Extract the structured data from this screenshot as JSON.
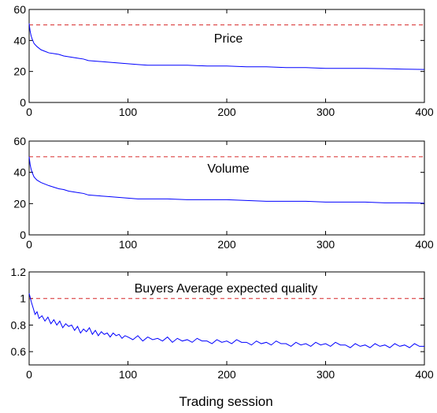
{
  "figure": {
    "xlabel": "Trading session"
  },
  "chart_data": [
    {
      "type": "line",
      "title": "",
      "annotation": "Price",
      "xlabel": "",
      "ylabel": "",
      "xlim": [
        0,
        400
      ],
      "ylim": [
        0,
        60
      ],
      "xticks": [
        0,
        100,
        200,
        300,
        400
      ],
      "yticks": [
        0,
        20,
        40,
        60
      ],
      "grid": false,
      "legend": "none",
      "reference_line": {
        "y": 50,
        "style": "dashed",
        "color": "#d62728"
      },
      "series": [
        {
          "color": "#0000ff",
          "x": [
            0,
            1,
            2,
            3,
            5,
            8,
            12,
            16,
            20,
            25,
            30,
            35,
            40,
            45,
            50,
            55,
            60,
            70,
            80,
            90,
            100,
            110,
            120,
            140,
            160,
            180,
            200,
            220,
            240,
            260,
            280,
            300,
            320,
            340,
            360,
            380,
            400
          ],
          "y": [
            51,
            46,
            43,
            41,
            38,
            36,
            34,
            33,
            32,
            31.5,
            31,
            30,
            29.5,
            29,
            28.5,
            28,
            27,
            26.5,
            26,
            25.5,
            25,
            24.5,
            24,
            24,
            24,
            23.5,
            23.5,
            23,
            23,
            22.5,
            22.5,
            22,
            22,
            22,
            21.8,
            21.5,
            21.3
          ]
        }
      ]
    },
    {
      "type": "line",
      "title": "",
      "annotation": "Volume",
      "xlabel": "",
      "ylabel": "",
      "xlim": [
        0,
        400
      ],
      "ylim": [
        0,
        60
      ],
      "xticks": [
        0,
        100,
        200,
        300,
        400
      ],
      "yticks": [
        0,
        20,
        40,
        60
      ],
      "grid": false,
      "legend": "none",
      "reference_line": {
        "y": 50,
        "style": "dashed",
        "color": "#d62728"
      },
      "series": [
        {
          "color": "#0000ff",
          "x": [
            0,
            1,
            2,
            3,
            5,
            8,
            12,
            16,
            20,
            25,
            30,
            35,
            40,
            45,
            50,
            55,
            60,
            70,
            80,
            90,
            100,
            110,
            120,
            140,
            160,
            180,
            200,
            220,
            240,
            260,
            280,
            300,
            320,
            340,
            360,
            380,
            400
          ],
          "y": [
            50,
            45,
            42,
            40,
            37,
            35,
            33.5,
            32.5,
            31.5,
            30.5,
            29.5,
            29,
            28,
            27.5,
            27,
            26.5,
            25.5,
            25,
            24.5,
            24,
            23.5,
            23,
            23,
            23,
            22.5,
            22.5,
            22.5,
            22,
            21.5,
            21.5,
            21.5,
            21,
            21,
            21,
            20.5,
            20.5,
            20.3
          ]
        }
      ]
    },
    {
      "type": "line",
      "title": "",
      "annotation": "Buyers Average expected quality",
      "xlabel": "Trading session",
      "ylabel": "",
      "xlim": [
        0,
        400
      ],
      "ylim": [
        0.5,
        1.2
      ],
      "xticks": [
        0,
        100,
        200,
        300,
        400
      ],
      "yticks": [
        0.6,
        0.8,
        1,
        1.2
      ],
      "grid": false,
      "legend": "none",
      "reference_line": {
        "y": 1,
        "style": "dashed",
        "color": "#d62728"
      },
      "series": [
        {
          "color": "#0000ff",
          "x": [
            0,
            2,
            4,
            6,
            8,
            10,
            13,
            16,
            19,
            22,
            25,
            28,
            31,
            34,
            37,
            40,
            43,
            46,
            49,
            52,
            55,
            58,
            61,
            64,
            67,
            70,
            73,
            76,
            79,
            82,
            85,
            88,
            91,
            94,
            97,
            100,
            105,
            110,
            115,
            120,
            125,
            130,
            135,
            140,
            145,
            150,
            155,
            160,
            165,
            170,
            175,
            180,
            185,
            190,
            195,
            200,
            205,
            210,
            215,
            220,
            225,
            230,
            235,
            240,
            245,
            250,
            255,
            260,
            265,
            270,
            275,
            280,
            285,
            290,
            295,
            300,
            305,
            310,
            315,
            320,
            325,
            330,
            335,
            340,
            345,
            350,
            355,
            360,
            365,
            370,
            375,
            380,
            385,
            390,
            395,
            400
          ],
          "y": [
            1.04,
            0.98,
            0.93,
            0.88,
            0.9,
            0.85,
            0.87,
            0.83,
            0.86,
            0.81,
            0.84,
            0.8,
            0.83,
            0.78,
            0.81,
            0.79,
            0.8,
            0.76,
            0.79,
            0.74,
            0.77,
            0.75,
            0.78,
            0.73,
            0.76,
            0.72,
            0.75,
            0.73,
            0.74,
            0.71,
            0.74,
            0.72,
            0.73,
            0.7,
            0.72,
            0.71,
            0.69,
            0.72,
            0.68,
            0.71,
            0.69,
            0.7,
            0.68,
            0.71,
            0.67,
            0.7,
            0.68,
            0.69,
            0.67,
            0.7,
            0.68,
            0.68,
            0.66,
            0.69,
            0.67,
            0.68,
            0.66,
            0.69,
            0.67,
            0.67,
            0.65,
            0.68,
            0.66,
            0.67,
            0.65,
            0.68,
            0.66,
            0.66,
            0.64,
            0.67,
            0.65,
            0.66,
            0.64,
            0.67,
            0.65,
            0.66,
            0.64,
            0.67,
            0.65,
            0.65,
            0.63,
            0.66,
            0.64,
            0.65,
            0.63,
            0.66,
            0.64,
            0.65,
            0.63,
            0.66,
            0.64,
            0.65,
            0.63,
            0.66,
            0.64,
            0.64
          ]
        }
      ]
    }
  ]
}
